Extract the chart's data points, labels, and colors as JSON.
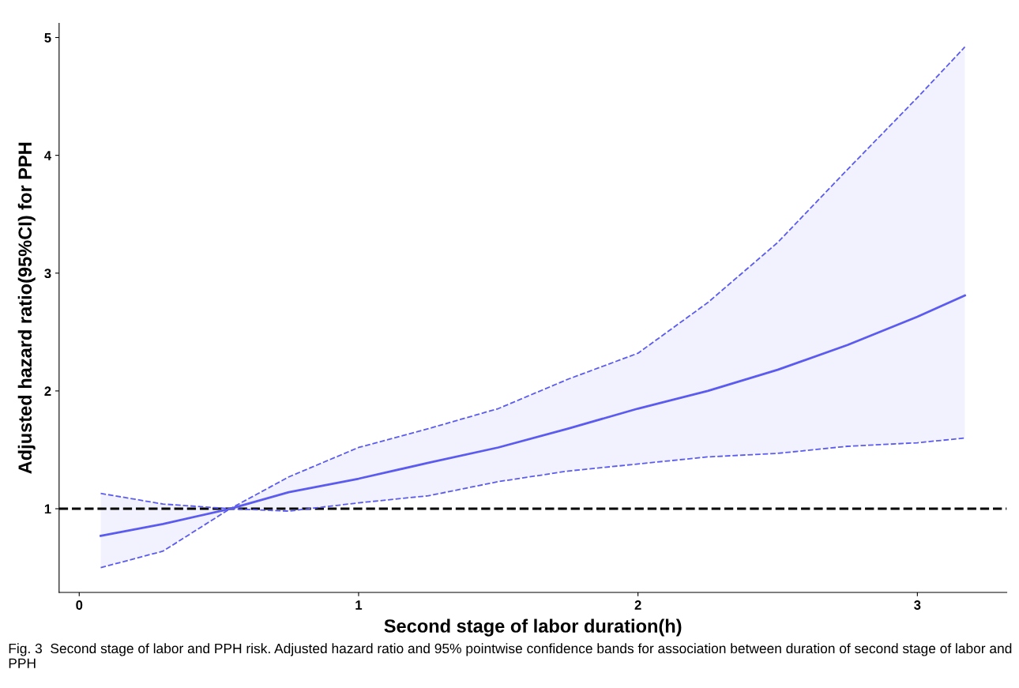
{
  "chart_data": {
    "type": "line",
    "xlabel": "Second stage of labor duration(h)",
    "ylabel": "Adjusted hazard ratio(95%CI) for PPH",
    "x": [
      0.077,
      0.3,
      0.54,
      0.75,
      1.0,
      1.25,
      1.5,
      1.75,
      2.0,
      2.25,
      2.5,
      2.75,
      3.0,
      3.17
    ],
    "series": [
      {
        "color": "#5b5bf0",
        "line_style": "solid",
        "values": [
          0.77,
          0.87,
          1.0,
          1.14,
          1.255,
          1.39,
          1.52,
          1.68,
          1.85,
          2.0,
          2.18,
          2.39,
          2.63,
          2.81
        ],
        "lower": [
          0.5,
          0.64,
          1.0,
          0.98,
          1.05,
          1.11,
          1.23,
          1.32,
          1.38,
          1.44,
          1.47,
          1.53,
          1.56,
          1.6
        ],
        "upper": [
          1.13,
          1.04,
          1.0,
          1.27,
          1.52,
          1.68,
          1.85,
          2.1,
          2.32,
          2.75,
          3.26,
          3.88,
          4.49,
          4.92
        ]
      },
      {
        "color": "#5b5bf0",
        "line_style": "dashed",
        "values": [
          0.5,
          0.64,
          1.0,
          0.98,
          1.05,
          1.11,
          1.23,
          1.32,
          1.38,
          1.44,
          1.47,
          1.53,
          1.56,
          1.6
        ]
      },
      {
        "color": "#5b5bf0",
        "line_style": "dashed",
        "values": [
          1.13,
          1.04,
          1.0,
          1.27,
          1.52,
          1.68,
          1.85,
          2.1,
          2.32,
          2.75,
          3.26,
          3.88,
          4.49,
          4.92
        ]
      }
    ],
    "xlim": [
      -0.072,
      3.32
    ],
    "ylim": [
      0.29,
      5.12
    ],
    "xticks": [
      0,
      1,
      2,
      3
    ],
    "yticks": [
      1,
      2,
      3,
      4,
      5
    ],
    "ref_lines": [
      {
        "axis": "y",
        "value": 1,
        "label": null,
        "color": "#000000",
        "line_style": "dashed"
      }
    ],
    "grid": false,
    "legend": false,
    "annotations": [
      "Fig. 3  Second stage of labor and PPH risk. Adjusted hazard ratio and 95% pointwise confidence bands for association between duration of second stage of labor and PPH"
    ]
  }
}
